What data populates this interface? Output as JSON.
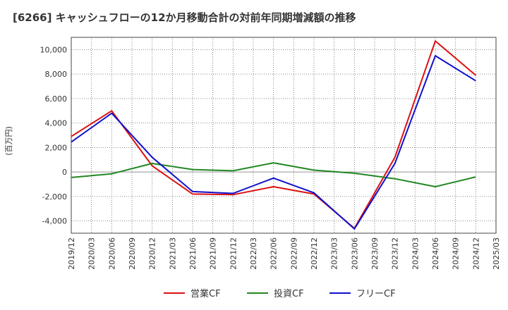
{
  "chart_data": {
    "type": "line",
    "title": "[6266]  キャッシュフローの12か月移動合計の対前年同期増減額の推移",
    "ylabel": "(百万円)",
    "xlabel": "",
    "ylim": [
      -5000,
      11000
    ],
    "yticks": [
      -4000,
      -2000,
      0,
      2000,
      4000,
      6000,
      8000,
      10000
    ],
    "ytick_labels": [
      "-4,000",
      "-2,000",
      "0",
      "2,000",
      "4,000",
      "6,000",
      "8,000",
      "10,000"
    ],
    "x_tick_labels": [
      "2019/12",
      "2020/03",
      "2020/06",
      "2020/09",
      "2020/12",
      "2021/03",
      "2021/06",
      "2021/09",
      "2021/12",
      "2022/03",
      "2022/06",
      "2022/09",
      "2022/12",
      "2023/03",
      "2023/06",
      "2023/09",
      "2023/12",
      "2024/03",
      "2024/06",
      "2024/09",
      "2024/12",
      "2025/03"
    ],
    "grid": true,
    "series": [
      {
        "name": "営業CF",
        "color": "#dd1111",
        "x": [
          "2019/12",
          "2020/06",
          "2020/12",
          "2021/06",
          "2021/12",
          "2022/06",
          "2022/12",
          "2023/06",
          "2023/12",
          "2024/06",
          "2024/12"
        ],
        "values": [
          2900,
          5000,
          500,
          -1800,
          -1850,
          -1200,
          -1800,
          -4600,
          1200,
          10700,
          7900
        ]
      },
      {
        "name": "投資CF",
        "color": "#228822",
        "x": [
          "2019/12",
          "2020/06",
          "2020/12",
          "2021/06",
          "2021/12",
          "2022/06",
          "2022/12",
          "2023/06",
          "2023/12",
          "2024/06",
          "2024/12"
        ],
        "values": [
          -450,
          -150,
          700,
          200,
          100,
          750,
          150,
          -100,
          -550,
          -1200,
          -400
        ]
      },
      {
        "name": "フリーCF",
        "color": "#1111cc",
        "x": [
          "2019/12",
          "2020/06",
          "2020/12",
          "2021/06",
          "2021/12",
          "2022/06",
          "2022/12",
          "2023/06",
          "2023/12",
          "2024/06",
          "2024/12"
        ],
        "values": [
          2450,
          4800,
          1200,
          -1600,
          -1750,
          -500,
          -1700,
          -4650,
          700,
          9500,
          7450
        ]
      }
    ],
    "legend_position": "bottom"
  }
}
